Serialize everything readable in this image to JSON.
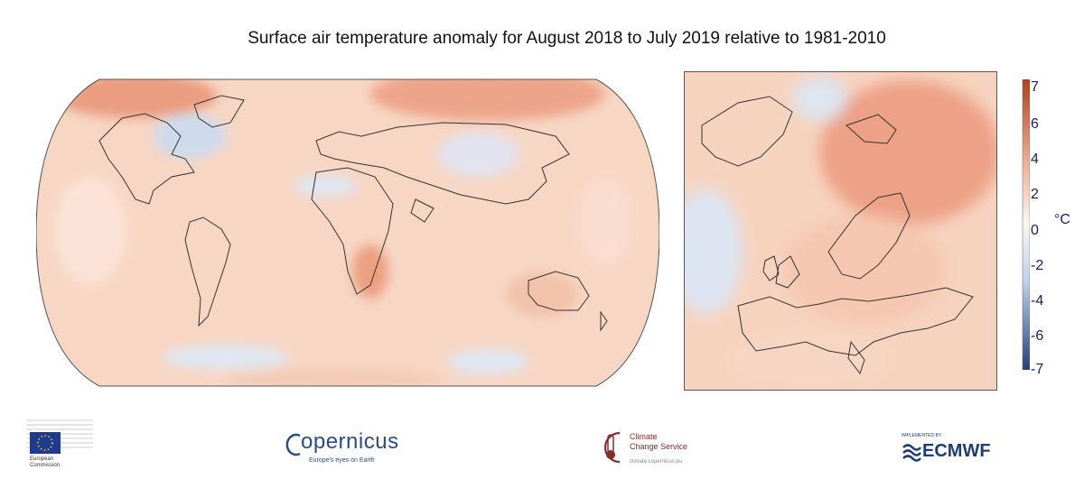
{
  "title": "Surface air temperature anomaly for August 2018 to July 2019 relative to 1981-2010",
  "colorbar": {
    "unit": "°C",
    "ticks": [
      "7",
      "6",
      "4",
      "2",
      "0",
      "-2",
      "-4",
      "-6",
      "-7"
    ],
    "colors": {
      "max": "#b3401f",
      "warm": "#f1b59b",
      "zero": "#faf6f2",
      "cool": "#bcd0ea",
      "min": "#24407e"
    }
  },
  "logos": {
    "european_commission": {
      "line1": "European",
      "line2": "Commission"
    },
    "copernicus": {
      "name": "opernicus",
      "tagline": "Europe's eyes on Earth"
    },
    "c3s": {
      "line1": "Climate",
      "line2": "Change Service",
      "url": "climate.copernicus.eu"
    },
    "ecmwf": {
      "implemented_by": "IMPLEMENTED BY",
      "name": "ECMWF"
    }
  }
}
